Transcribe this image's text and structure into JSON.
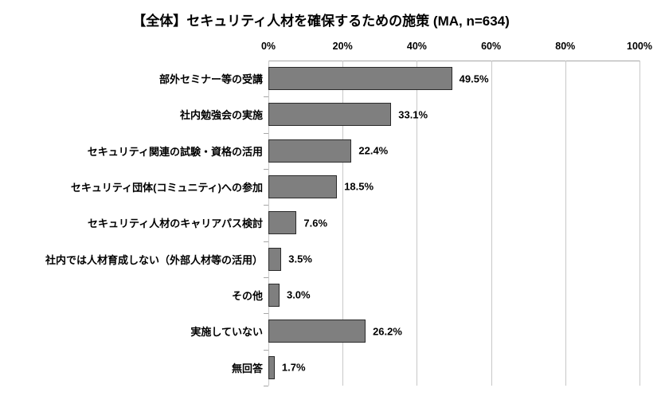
{
  "chart_data": {
    "type": "bar",
    "orientation": "horizontal",
    "title": "【全体】セキュリティ人材を確保するための施策 (MA, n=634)",
    "categories": [
      "部外セミナー等の受講",
      "社内勉強会の実施",
      "セキュリティ関連の試験・資格の活用",
      "セキュリティ団体(コミュニティ)への参加",
      "セキュリティ人材のキャリアパス検討",
      "社内では人材育成しない（外部人材等の活用）",
      "その他",
      "実施していない",
      "無回答"
    ],
    "values": [
      49.5,
      33.1,
      22.4,
      18.5,
      7.6,
      3.5,
      3.0,
      26.2,
      1.7
    ],
    "value_labels": [
      "49.5%",
      "33.1%",
      "22.4%",
      "18.5%",
      "7.6%",
      "3.5%",
      "3.0%",
      "26.2%",
      "1.7%"
    ],
    "xlim": [
      0,
      100
    ],
    "x_tick_labels": [
      "0%",
      "20%",
      "40%",
      "60%",
      "80%",
      "100%"
    ],
    "grid": true,
    "legend": "none",
    "colors": {
      "bar_fill": "#7f7f7f",
      "bar_border": "#2b2b2b",
      "gridline": "#c8c8c8",
      "axis_line": "#a6a6a6",
      "text": "#000000",
      "background": "#ffffff"
    }
  }
}
